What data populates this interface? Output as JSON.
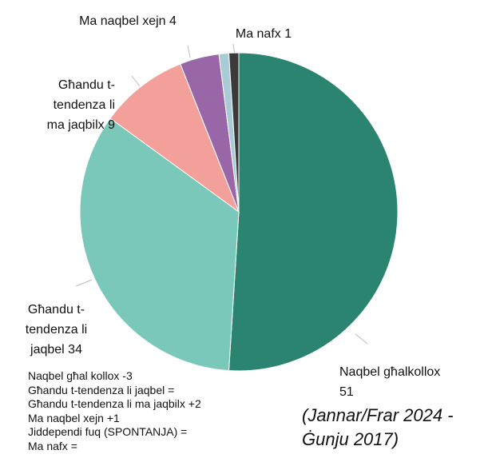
{
  "chart_data": {
    "type": "pie",
    "subtitle": "(Jannar/Frar 2024 - Ġunju 2017)",
    "categories": [
      "Naqbel għalkollox",
      "Għandu t-tendenza li jaqbel",
      "Għandu t-tendenza li ma jaqbilx",
      "Ma naqbel xejn",
      null,
      "Ma nafx"
    ],
    "values": [
      51,
      34,
      9,
      4,
      1,
      1
    ],
    "colors": [
      "#2a846f",
      "#79c8b9",
      "#f4a09a",
      "#9966a8",
      "#a9cbd6",
      "#3a3a3a"
    ],
    "annotations": [
      "Naqbel għal kollox -3",
      "Għandu t-tendenza li jaqbel =",
      "Għandu t-tendenza li ma jaqbilx +2",
      "Ma naqbel xejn +1",
      "Jiddependi fuq (SPONTANJA) =",
      "Ma nafx ="
    ]
  }
}
